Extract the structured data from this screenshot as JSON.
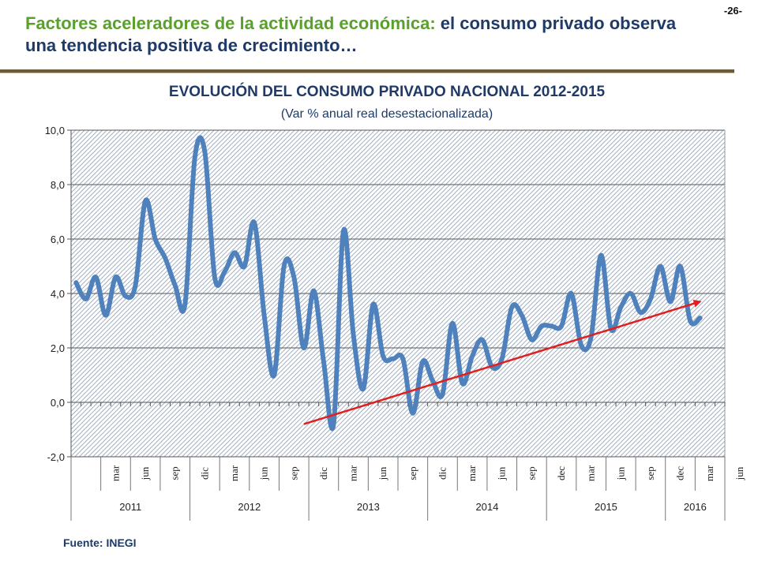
{
  "slide": {
    "number": "-26-",
    "headline_highlight": "Factores aceleradores de la actividad económica:",
    "headline_rest": " el consumo privado observa una tendencia positiva de crecimiento…",
    "source": "Fuente: INEGI"
  },
  "chart_data": {
    "type": "line",
    "title": "EVOLUCIÓN DEL CONSUMO PRIVADO NACIONAL 2012-2015",
    "subtitle": "(Var % anual real desestacionalizada)",
    "ylim": [
      -2,
      10
    ],
    "yticks": [
      "-2,0",
      "0,0",
      "2,0",
      "4,0",
      "6,0",
      "8,0",
      "10,0"
    ],
    "month_labels": [
      "mar",
      "jun",
      "sep",
      "dic",
      "mar",
      "jun",
      "sep",
      "dic",
      "mar",
      "jun",
      "sep",
      "dic",
      "mar",
      "jun",
      "sep",
      "dec",
      "mar",
      "jun",
      "sep",
      "dec",
      "mar",
      "jun"
    ],
    "years": [
      {
        "label": "2011",
        "months": 12
      },
      {
        "label": "2012",
        "months": 12
      },
      {
        "label": "2013",
        "months": 12
      },
      {
        "label": "2014",
        "months": 12
      },
      {
        "label": "2015",
        "months": 12
      },
      {
        "label": "2016",
        "months": 6
      }
    ],
    "series": [
      {
        "color": "#4f81bd",
        "values": [
          4.4,
          3.8,
          4.6,
          3.2,
          4.6,
          3.9,
          4.3,
          7.4,
          6.0,
          5.3,
          4.3,
          3.6,
          9.0,
          9.2,
          4.6,
          4.8,
          5.5,
          5.0,
          6.6,
          3.2,
          1.0,
          5.0,
          4.6,
          2.0,
          4.1,
          1.5,
          -0.8,
          6.3,
          2.5,
          0.5,
          3.6,
          1.7,
          1.6,
          1.6,
          -0.4,
          1.5,
          0.8,
          0.3,
          2.9,
          0.7,
          1.7,
          2.3,
          1.3,
          1.6,
          3.5,
          3.2,
          2.3,
          2.8,
          2.8,
          2.8,
          4.0,
          2.1,
          2.4,
          5.4,
          2.7,
          3.5,
          4.0,
          3.3,
          3.8,
          5.0,
          3.7,
          5.0,
          3.0,
          3.1
        ]
      }
    ],
    "trend": {
      "color": "#e02020",
      "x_start": 23,
      "y_start": -0.8,
      "x_end": 63,
      "y_end": 3.7
    }
  }
}
